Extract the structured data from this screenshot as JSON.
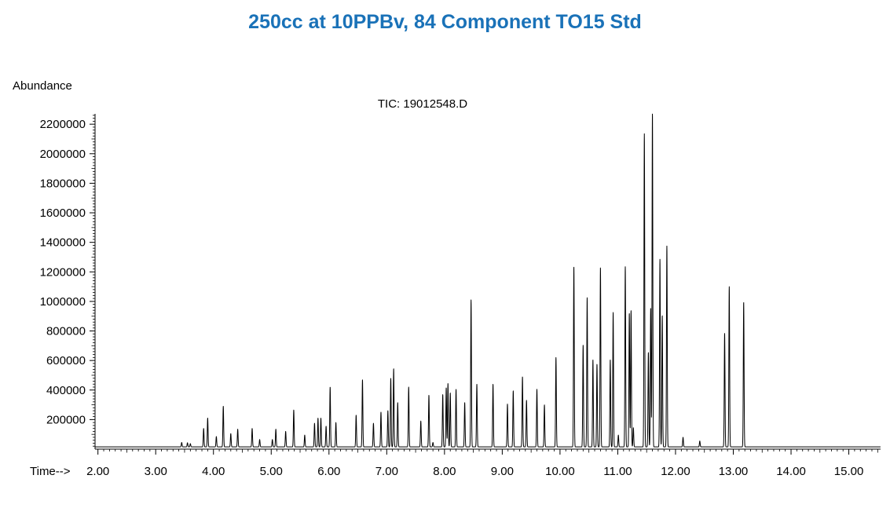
{
  "title": "250cc at 10PPBv, 84 Component TO15 Std",
  "colors": {
    "title": "#1a72b8",
    "trace": "#000000"
  },
  "chart_data": {
    "type": "line",
    "ylabel": "Abundance",
    "xlabel": "Time-->",
    "subtitle": "TIC: 19012548.D",
    "xlim": [
      1.95,
      15.55
    ],
    "ylim": [
      0,
      2270000
    ],
    "x_ticks": [
      "2.00",
      "3.00",
      "4.00",
      "5.00",
      "6.00",
      "7.00",
      "8.00",
      "9.00",
      "10.00",
      "11.00",
      "12.00",
      "13.00",
      "14.00",
      "15.00"
    ],
    "y_ticks": [
      "200000",
      "400000",
      "600000",
      "800000",
      "1000000",
      "1200000",
      "1400000",
      "1600000",
      "1800000",
      "2000000",
      "2200000"
    ],
    "baseline": 15000,
    "grid": false,
    "peaks": [
      [
        3.45,
        30000
      ],
      [
        3.55,
        28000
      ],
      [
        3.6,
        22000
      ],
      [
        3.83,
        125000
      ],
      [
        3.9,
        195000
      ],
      [
        4.05,
        70000
      ],
      [
        4.17,
        275000
      ],
      [
        4.3,
        90000
      ],
      [
        4.42,
        120000
      ],
      [
        4.67,
        125000
      ],
      [
        4.8,
        50000
      ],
      [
        5.02,
        50000
      ],
      [
        5.08,
        120000
      ],
      [
        5.25,
        105000
      ],
      [
        5.39,
        250000
      ],
      [
        5.58,
        80000
      ],
      [
        5.75,
        160000
      ],
      [
        5.81,
        195000
      ],
      [
        5.86,
        195000
      ],
      [
        5.95,
        140000
      ],
      [
        6.02,
        405000
      ],
      [
        6.12,
        165000
      ],
      [
        6.47,
        215000
      ],
      [
        6.58,
        455000
      ],
      [
        6.77,
        160000
      ],
      [
        6.9,
        235000
      ],
      [
        7.02,
        245000
      ],
      [
        7.07,
        465000
      ],
      [
        7.12,
        530000
      ],
      [
        7.19,
        300000
      ],
      [
        7.38,
        405000
      ],
      [
        7.59,
        175000
      ],
      [
        7.73,
        350000
      ],
      [
        7.8,
        30000
      ],
      [
        7.97,
        355000
      ],
      [
        8.03,
        400000
      ],
      [
        8.06,
        430000
      ],
      [
        8.1,
        365000
      ],
      [
        8.2,
        390000
      ],
      [
        8.35,
        300000
      ],
      [
        8.46,
        995000
      ],
      [
        8.56,
        425000
      ],
      [
        8.84,
        425000
      ],
      [
        9.09,
        290000
      ],
      [
        9.19,
        380000
      ],
      [
        9.35,
        475000
      ],
      [
        9.42,
        315000
      ],
      [
        9.6,
        390000
      ],
      [
        9.73,
        285000
      ],
      [
        9.93,
        605000
      ],
      [
        10.24,
        1220000
      ],
      [
        10.4,
        690000
      ],
      [
        10.47,
        1010000
      ],
      [
        10.57,
        590000
      ],
      [
        10.64,
        560000
      ],
      [
        10.7,
        1215000
      ],
      [
        10.87,
        590000
      ],
      [
        10.92,
        910000
      ],
      [
        11.01,
        80000
      ],
      [
        11.13,
        1220000
      ],
      [
        11.2,
        905000
      ],
      [
        11.23,
        925000
      ],
      [
        11.27,
        130000
      ],
      [
        11.46,
        2120000
      ],
      [
        11.53,
        640000
      ],
      [
        11.57,
        940000
      ],
      [
        11.6,
        2260000
      ],
      [
        11.73,
        1270000
      ],
      [
        11.77,
        890000
      ],
      [
        11.85,
        1360000
      ],
      [
        12.13,
        65000
      ],
      [
        12.42,
        40000
      ],
      [
        12.85,
        770000
      ],
      [
        12.93,
        1085000
      ],
      [
        13.18,
        980000
      ]
    ]
  }
}
